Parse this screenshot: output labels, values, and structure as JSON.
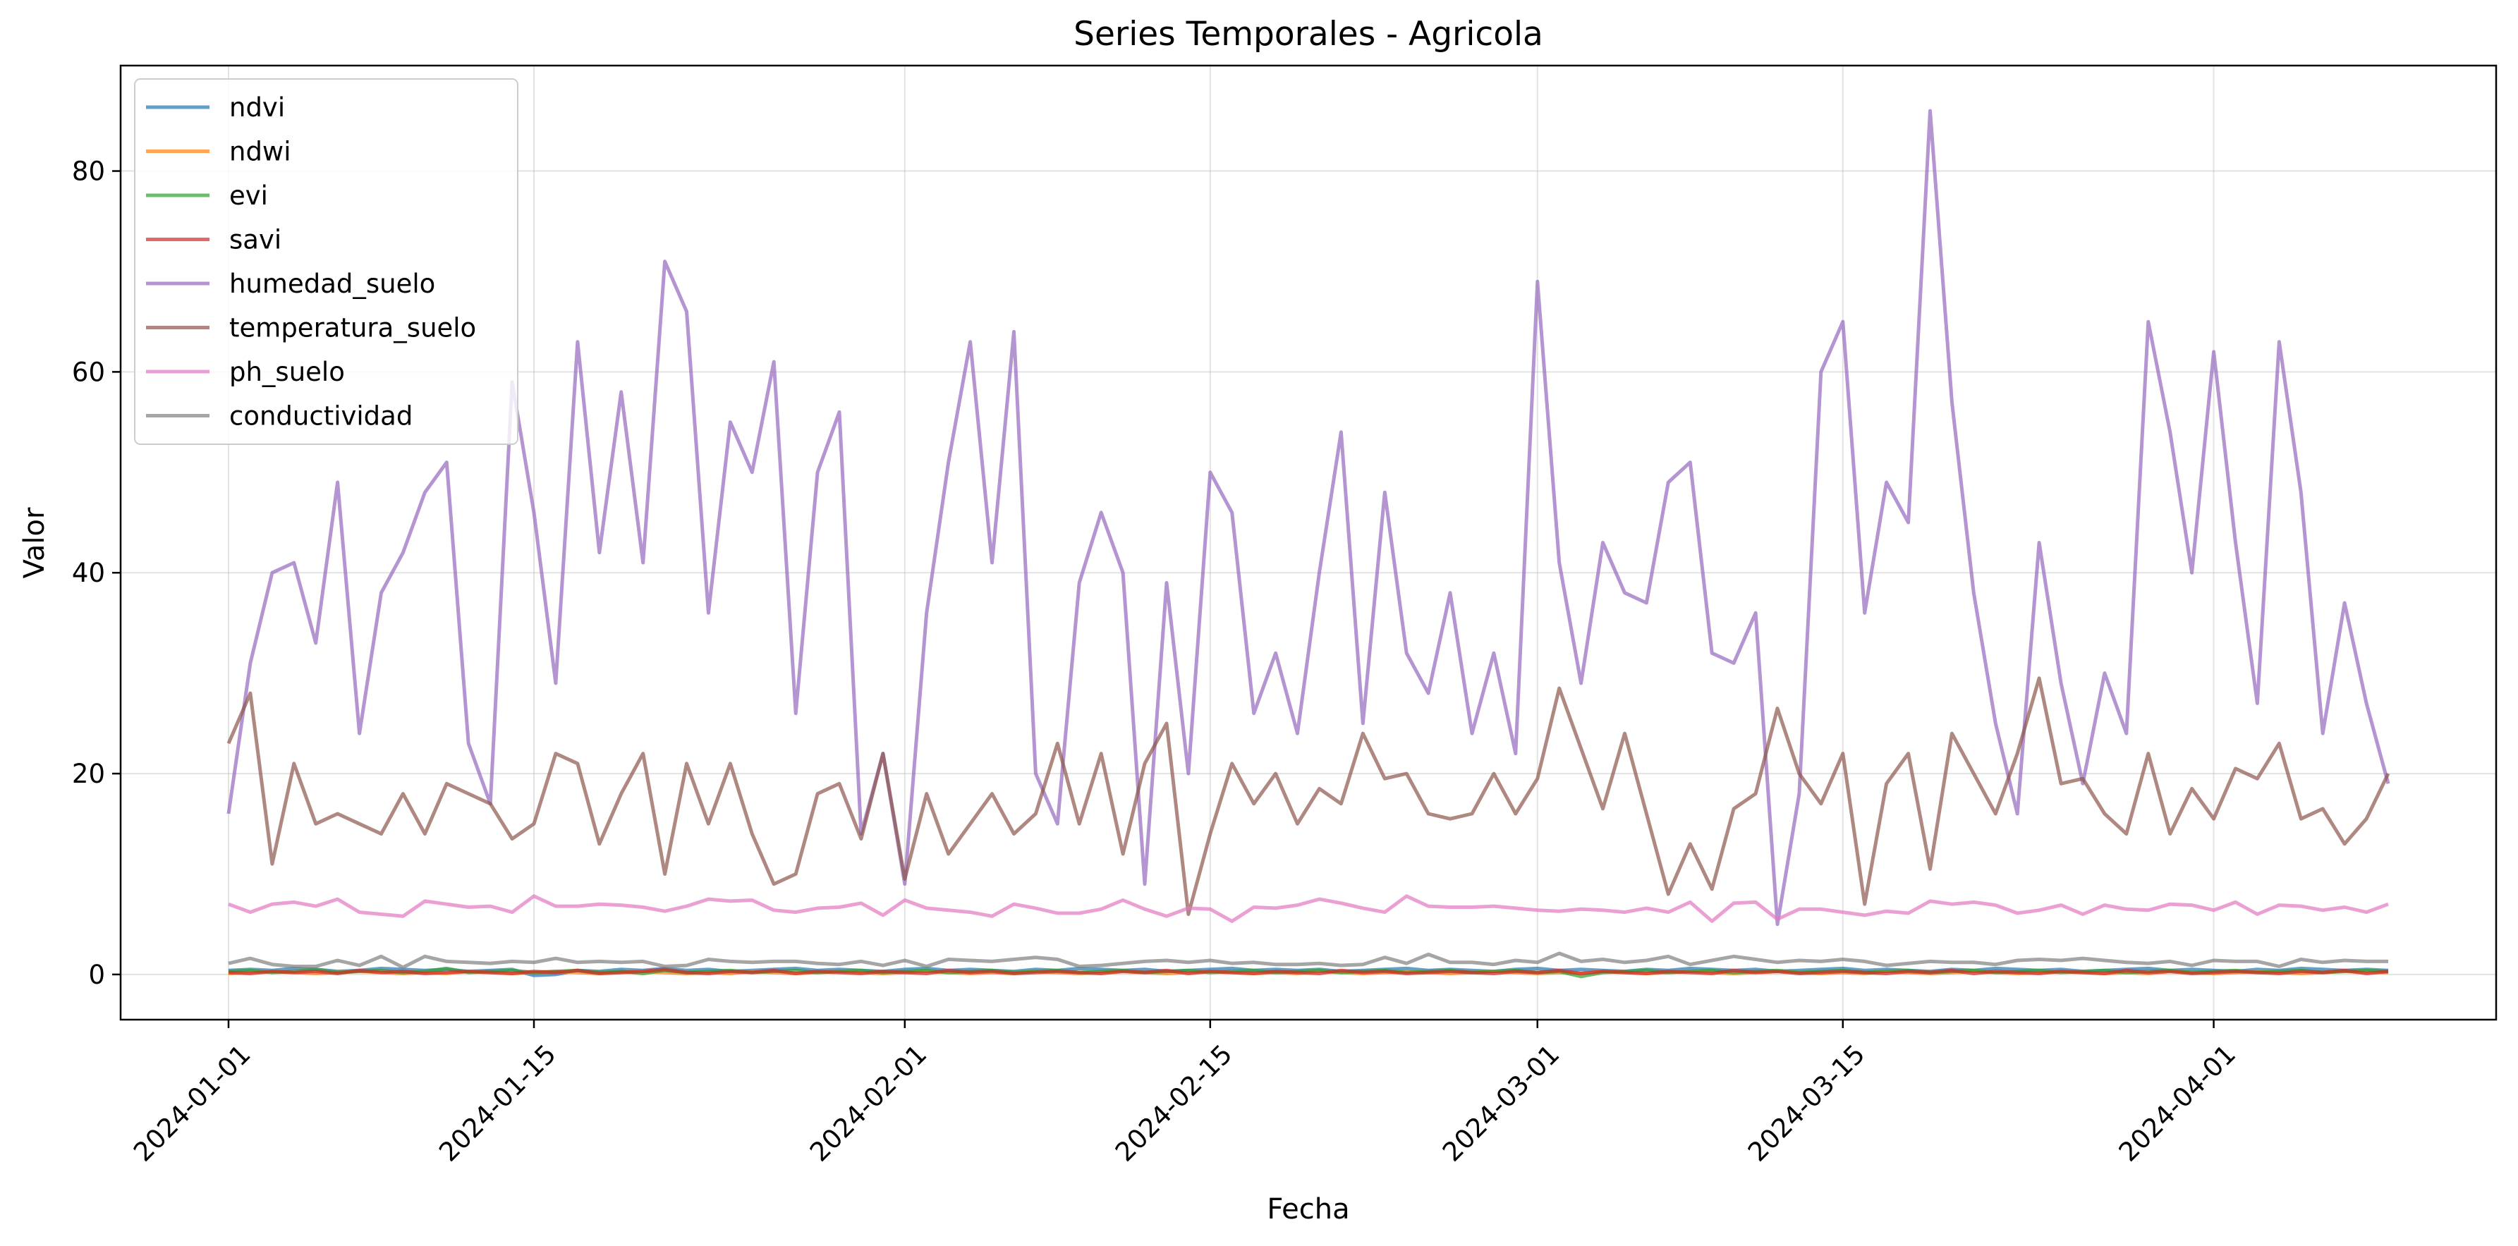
{
  "chart_data": {
    "type": "line",
    "title": "Series Temporales - Agricola",
    "xlabel": "Fecha",
    "ylabel": "Valor",
    "x_start": "2024-01-01",
    "x_end": "2024-04-09",
    "x_ticks": [
      "2024-01-01",
      "2024-01-15",
      "2024-02-01",
      "2024-02-15",
      "2024-03-01",
      "2024-03-15",
      "2024-04-01"
    ],
    "ylim": [
      -4.5,
      90.5
    ],
    "y_ticks": [
      0,
      20,
      40,
      60,
      80
    ],
    "grid": true,
    "legend_position": "top-left",
    "series": [
      {
        "name": "ndvi",
        "color": "#1f77b4",
        "values": [
          0.4,
          0.5,
          0.4,
          0.6,
          0.5,
          0.3,
          0.4,
          0.6,
          0.5,
          0.4,
          0.5,
          0.3,
          0.4,
          0.5,
          -0.1,
          0.0,
          0.4,
          0.3,
          0.5,
          0.4,
          0.6,
          0.4,
          0.5,
          0.3,
          0.4,
          0.5,
          0.6,
          0.4,
          0.5,
          0.4,
          0.3,
          0.5,
          0.6,
          0.4,
          0.5,
          0.4,
          0.3,
          0.5,
          0.4,
          0.6,
          0.5,
          0.4,
          0.5,
          0.3,
          0.4,
          0.5,
          0.6,
          0.4,
          0.5,
          0.4,
          0.5,
          0.3,
          0.4,
          0.5,
          0.6,
          0.4,
          0.5,
          0.4,
          0.3,
          0.5,
          0.6,
          0.4,
          0.5,
          0.4,
          0.3,
          0.5,
          0.4,
          0.6,
          0.5,
          0.4,
          0.5,
          0.3,
          0.4,
          0.5,
          0.6,
          0.4,
          0.5,
          0.4,
          0.3,
          0.5,
          0.4,
          0.6,
          0.5,
          0.4,
          0.5,
          0.3,
          0.4,
          0.5,
          0.6,
          0.4,
          0.5,
          0.4,
          0.3,
          0.5,
          0.4,
          0.6,
          0.5,
          0.4,
          0.5,
          0.4
        ]
      },
      {
        "name": "ndwi",
        "color": "#ff7f0e",
        "values": [
          0.1,
          0.2,
          0.3,
          0.2,
          0.1,
          0.2,
          0.3,
          0.2,
          0.1,
          0.2,
          0.1,
          0.3,
          0.2,
          0.1,
          0.2,
          0.3,
          0.2,
          0.1,
          0.2,
          0.3,
          0.2,
          0.1,
          0.2,
          0.1,
          0.3,
          0.2,
          0.1,
          0.2,
          0.3,
          0.2,
          0.1,
          0.2,
          0.3,
          0.2,
          0.1,
          0.2,
          0.1,
          0.3,
          0.2,
          0.1,
          0.2,
          0.3,
          0.2,
          0.1,
          0.2,
          0.3,
          0.2,
          0.1,
          0.2,
          0.1,
          0.3,
          0.2,
          0.1,
          0.2,
          0.3,
          0.2,
          0.1,
          0.2,
          0.3,
          0.2,
          0.1,
          0.2,
          0.1,
          0.3,
          0.2,
          0.1,
          0.2,
          0.3,
          0.2,
          0.1,
          0.2,
          0.3,
          0.2,
          0.1,
          0.2,
          0.1,
          0.3,
          0.2,
          0.1,
          0.2,
          0.3,
          0.2,
          0.1,
          0.2,
          0.3,
          0.2,
          0.1,
          0.2,
          0.1,
          0.3,
          0.2,
          0.1,
          0.2,
          0.3,
          0.2,
          0.1,
          0.2,
          0.3,
          0.2,
          0.2
        ]
      },
      {
        "name": "evi",
        "color": "#2ca02c",
        "values": [
          0.3,
          0.4,
          0.2,
          0.3,
          0.5,
          0.2,
          0.3,
          0.4,
          0.2,
          0.3,
          0.6,
          0.2,
          0.3,
          0.4,
          0.2,
          0.3,
          0.4,
          0.2,
          0.3,
          0.1,
          0.4,
          0.2,
          0.3,
          0.4,
          0.2,
          0.3,
          0.4,
          0.2,
          0.3,
          0.4,
          0.2,
          0.3,
          0.4,
          0.2,
          0.3,
          0.4,
          0.2,
          0.3,
          0.4,
          0.2,
          0.3,
          0.4,
          0.2,
          0.3,
          0.4,
          0.2,
          0.3,
          0.4,
          0.2,
          0.3,
          0.4,
          0.2,
          0.3,
          0.4,
          0.2,
          0.3,
          0.4,
          0.2,
          0.3,
          0.4,
          0.2,
          0.3,
          -0.2,
          0.2,
          0.3,
          0.4,
          0.2,
          0.3,
          0.4,
          0.2,
          0.3,
          0.4,
          0.2,
          0.3,
          0.4,
          0.2,
          0.3,
          0.4,
          0.2,
          0.3,
          0.4,
          0.2,
          0.3,
          0.4,
          0.2,
          0.3,
          0.4,
          0.2,
          0.3,
          0.4,
          0.2,
          0.3,
          0.4,
          0.2,
          0.3,
          0.4,
          0.2,
          0.3,
          0.4,
          0.3
        ]
      },
      {
        "name": "savi",
        "color": "#d62728",
        "values": [
          0.2,
          0.1,
          0.3,
          0.2,
          0.3,
          0.1,
          0.4,
          0.2,
          0.3,
          0.1,
          0.2,
          0.3,
          0.2,
          0.1,
          0.3,
          0.2,
          0.4,
          0.1,
          0.2,
          0.3,
          0.5,
          0.2,
          0.1,
          0.3,
          0.2,
          0.4,
          0.1,
          0.3,
          0.2,
          0.1,
          0.3,
          0.2,
          0.1,
          0.4,
          0.2,
          0.3,
          0.1,
          0.2,
          0.3,
          0.2,
          0.1,
          0.3,
          0.2,
          0.4,
          0.1,
          0.3,
          0.2,
          0.1,
          0.3,
          0.2,
          0.1,
          0.4,
          0.2,
          0.3,
          0.1,
          0.2,
          0.3,
          0.2,
          0.1,
          0.3,
          0.2,
          0.4,
          0.1,
          0.3,
          0.2,
          0.1,
          0.3,
          0.2,
          0.1,
          0.4,
          0.2,
          0.3,
          0.1,
          0.2,
          0.3,
          0.2,
          0.1,
          0.3,
          0.2,
          0.4,
          0.1,
          0.3,
          0.2,
          0.1,
          0.3,
          0.2,
          0.1,
          0.4,
          0.2,
          0.3,
          0.1,
          0.2,
          0.3,
          0.2,
          0.1,
          0.3,
          0.2,
          0.4,
          0.1,
          0.3
        ]
      },
      {
        "name": "humedad_suelo",
        "color": "#9467bd",
        "values": [
          16,
          31,
          40,
          41,
          33,
          49,
          24,
          38,
          42,
          48,
          51,
          23,
          17,
          59,
          46,
          29,
          63,
          42,
          58,
          41,
          71,
          66,
          36,
          55,
          50,
          61,
          26,
          50,
          56,
          14,
          22,
          9,
          36,
          51,
          63,
          41,
          64,
          20,
          15,
          39,
          46,
          40,
          9,
          39,
          20,
          50,
          46,
          26,
          32,
          24,
          40,
          54,
          25,
          48,
          32,
          28,
          38,
          24,
          32,
          22,
          69,
          41,
          29,
          43,
          38,
          37,
          49,
          51,
          32,
          31,
          36,
          5,
          18,
          60,
          65,
          36,
          49,
          45,
          86,
          57,
          38,
          25,
          16,
          43,
          29,
          19,
          30,
          24,
          65,
          54,
          40,
          62,
          43,
          27,
          63,
          48,
          24,
          37,
          27,
          19
        ]
      },
      {
        "name": "temperatura_suelo",
        "color": "#8c564b",
        "values": [
          23,
          28,
          11,
          21,
          15,
          16,
          15,
          14,
          18,
          14,
          19,
          18,
          17,
          13.5,
          15,
          22,
          21,
          13,
          18,
          22,
          10,
          21,
          15,
          21,
          14,
          9,
          10,
          18,
          19,
          13.5,
          22,
          9.5,
          18,
          12,
          15,
          18,
          14,
          16,
          23,
          15,
          22,
          12,
          21,
          25,
          6,
          14,
          21,
          17,
          20,
          15,
          18.5,
          17,
          24,
          19.5,
          20,
          16,
          15.5,
          16,
          20,
          16,
          19.5,
          28.5,
          22.5,
          16.5,
          24,
          16,
          8,
          13,
          8.5,
          16.5,
          18,
          26.5,
          20,
          17,
          22,
          7,
          19,
          22,
          10.5,
          24,
          20,
          16,
          22,
          29.5,
          19,
          19.5,
          16,
          14,
          22,
          14,
          18.5,
          15.5,
          20.5,
          19.5,
          23,
          15.5,
          16.5,
          13,
          15.5,
          20
        ]
      },
      {
        "name": "ph_suelo",
        "color": "#e377c2",
        "values": [
          7.0,
          6.2,
          7.0,
          7.2,
          6.8,
          7.5,
          6.2,
          6.0,
          5.8,
          7.3,
          7.0,
          6.7,
          6.8,
          6.2,
          7.8,
          6.8,
          6.8,
          7.0,
          6.9,
          6.7,
          6.3,
          6.8,
          7.5,
          7.3,
          7.4,
          6.4,
          6.2,
          6.6,
          6.7,
          7.1,
          5.9,
          7.4,
          6.6,
          6.4,
          6.2,
          5.8,
          7.0,
          6.6,
          6.1,
          6.1,
          6.5,
          7.4,
          6.5,
          5.8,
          6.6,
          6.5,
          5.3,
          6.7,
          6.6,
          6.9,
          7.5,
          7.1,
          6.6,
          6.2,
          7.8,
          6.8,
          6.7,
          6.7,
          6.8,
          6.6,
          6.4,
          6.3,
          6.5,
          6.4,
          6.2,
          6.6,
          6.2,
          7.2,
          5.3,
          7.1,
          7.2,
          5.5,
          6.5,
          6.5,
          6.2,
          5.9,
          6.3,
          6.1,
          7.3,
          7.0,
          7.2,
          6.9,
          6.1,
          6.4,
          6.9,
          6.0,
          6.9,
          6.5,
          6.4,
          7.0,
          6.9,
          6.4,
          7.2,
          6.0,
          6.9,
          6.8,
          6.4,
          6.7,
          6.2,
          7.0
        ]
      },
      {
        "name": "conductividad",
        "color": "#7f7f7f",
        "values": [
          1.1,
          1.6,
          1.0,
          0.8,
          0.8,
          1.4,
          0.9,
          1.8,
          0.7,
          1.8,
          1.3,
          1.2,
          1.1,
          1.3,
          1.2,
          1.6,
          1.2,
          1.3,
          1.2,
          1.3,
          0.8,
          0.9,
          1.5,
          1.3,
          1.2,
          1.3,
          1.3,
          1.1,
          1.0,
          1.3,
          0.9,
          1.4,
          0.8,
          1.5,
          1.4,
          1.3,
          1.5,
          1.7,
          1.5,
          0.8,
          0.9,
          1.1,
          1.3,
          1.4,
          1.2,
          1.4,
          1.1,
          1.2,
          1.0,
          1.0,
          1.1,
          0.9,
          1.0,
          1.7,
          1.1,
          2.0,
          1.2,
          1.2,
          1.0,
          1.4,
          1.2,
          2.1,
          1.3,
          1.5,
          1.2,
          1.4,
          1.8,
          1.0,
          1.4,
          1.8,
          1.5,
          1.2,
          1.4,
          1.3,
          1.5,
          1.3,
          0.9,
          1.1,
          1.3,
          1.2,
          1.2,
          1.0,
          1.4,
          1.5,
          1.4,
          1.6,
          1.4,
          1.2,
          1.1,
          1.3,
          0.9,
          1.4,
          1.3,
          1.3,
          0.8,
          1.5,
          1.2,
          1.4,
          1.3,
          1.3
        ]
      }
    ]
  }
}
